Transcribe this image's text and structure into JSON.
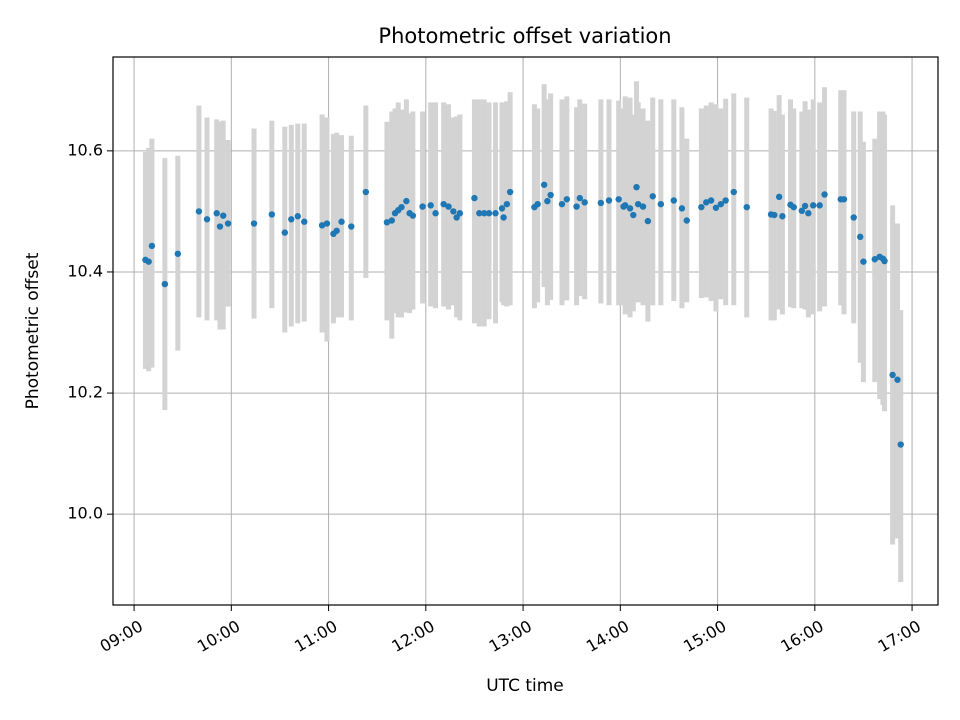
{
  "chart_data": {
    "type": "scatter",
    "title": "Photometric offset variation",
    "xlabel": "UTC time",
    "ylabel": "Photometric offset",
    "x_ticks": [
      "09:00",
      "10:00",
      "11:00",
      "12:00",
      "13:00",
      "14:00",
      "15:00",
      "16:00",
      "17:00"
    ],
    "y_ticks": [
      "10.0",
      "10.2",
      "10.4",
      "10.6"
    ],
    "xlim": [
      "08:47",
      "17:16"
    ],
    "ylim": [
      9.85,
      10.755
    ],
    "grid": true,
    "marker_color": "#1f77b4",
    "errorbar_color": "#d3d3d3",
    "series": [
      {
        "x": [
          "09:07",
          "09:09",
          "09:11",
          "09:19",
          "09:27",
          "09:40",
          "09:45",
          "09:51",
          "09:53",
          "09:55",
          "09:58",
          "10:14",
          "10:25",
          "10:33",
          "10:37",
          "10:41",
          "10:45",
          "10:56",
          "10:59",
          "11:03",
          "11:05",
          "11:08",
          "11:14",
          "11:23",
          "11:36",
          "11:39",
          "11:41",
          "11:43",
          "11:45",
          "11:48",
          "11:50",
          "11:52",
          "11:58",
          "12:03",
          "12:06",
          "12:11",
          "12:14",
          "12:17",
          "12:19",
          "12:21",
          "12:30",
          "12:33",
          "12:36",
          "12:39",
          "12:43",
          "12:47",
          "12:48",
          "12:50",
          "12:52",
          "13:07",
          "13:09",
          "13:13",
          "13:15",
          "13:17",
          "13:24",
          "13:27",
          "13:33",
          "13:35",
          "13:38",
          "13:48",
          "13:53",
          "13:59",
          "14:02",
          "14:03",
          "14:06",
          "14:08",
          "14:10",
          "14:11",
          "14:14",
          "14:17",
          "14:20",
          "14:25",
          "14:33",
          "14:38",
          "14:41",
          "14:50",
          "14:53",
          "14:56",
          "14:59",
          "15:02",
          "15:05",
          "15:10",
          "15:18",
          "15:33",
          "15:35",
          "15:38",
          "15:40",
          "15:45",
          "15:47",
          "15:52",
          "15:54",
          "15:56",
          "15:59",
          "16:03",
          "16:06",
          "16:16",
          "16:18",
          "16:24",
          "16:28",
          "16:30",
          "16:37",
          "16:40",
          "16:42",
          "16:43",
          "16:48",
          "16:51",
          "16:53"
        ],
        "y": [
          10.42,
          10.417,
          10.443,
          10.38,
          10.43,
          10.5,
          10.487,
          10.497,
          10.475,
          10.493,
          10.48,
          10.48,
          10.495,
          10.465,
          10.487,
          10.492,
          10.483,
          10.477,
          10.48,
          10.463,
          10.468,
          10.483,
          10.475,
          10.532,
          10.482,
          10.485,
          10.497,
          10.502,
          10.507,
          10.517,
          10.497,
          10.493,
          10.508,
          10.51,
          10.497,
          10.512,
          10.508,
          10.5,
          10.49,
          10.497,
          10.522,
          10.497,
          10.497,
          10.497,
          10.497,
          10.505,
          10.49,
          10.512,
          10.532,
          10.507,
          10.512,
          10.544,
          10.517,
          10.527,
          10.512,
          10.52,
          10.508,
          10.522,
          10.515,
          10.514,
          10.518,
          10.52,
          10.508,
          10.51,
          10.505,
          10.494,
          10.54,
          10.512,
          10.508,
          10.484,
          10.525,
          10.512,
          10.518,
          10.505,
          10.485,
          10.507,
          10.515,
          10.518,
          10.506,
          10.512,
          10.518,
          10.532,
          10.507,
          10.495,
          10.494,
          10.524,
          10.492,
          10.511,
          10.507,
          10.501,
          10.509,
          10.497,
          10.51,
          10.51,
          10.528,
          10.52,
          10.52,
          10.49,
          10.458,
          10.417,
          10.421,
          10.425,
          10.422,
          10.418,
          10.23,
          10.222,
          10.115
        ],
        "err_low": [
          10.24,
          10.236,
          10.242,
          10.172,
          10.27,
          10.325,
          10.32,
          10.32,
          10.305,
          10.305,
          10.343,
          10.323,
          10.34,
          10.3,
          10.31,
          10.315,
          10.318,
          10.3,
          10.285,
          10.315,
          10.325,
          10.325,
          10.32,
          10.39,
          10.32,
          10.29,
          10.332,
          10.325,
          10.325,
          10.333,
          10.332,
          10.338,
          10.348,
          10.343,
          10.34,
          10.343,
          10.338,
          10.345,
          10.325,
          10.32,
          10.315,
          10.31,
          10.31,
          10.322,
          10.315,
          10.35,
          10.345,
          10.343,
          10.345,
          10.34,
          10.35,
          10.375,
          10.345,
          10.354,
          10.345,
          10.353,
          10.345,
          10.36,
          10.355,
          10.348,
          10.345,
          10.345,
          10.345,
          10.33,
          10.325,
          10.335,
          10.36,
          10.35,
          10.345,
          10.318,
          10.345,
          10.345,
          10.352,
          10.34,
          10.35,
          10.357,
          10.358,
          10.352,
          10.335,
          10.355,
          10.345,
          10.345,
          10.325,
          10.32,
          10.32,
          10.338,
          10.33,
          10.342,
          10.34,
          10.34,
          10.338,
          10.325,
          10.33,
          10.335,
          10.343,
          10.345,
          10.33,
          10.315,
          10.25,
          10.218,
          10.218,
          10.19,
          10.18,
          10.17,
          9.95,
          9.96,
          9.888
        ],
        "err_high": [
          10.598,
          10.605,
          10.62,
          10.588,
          10.592,
          10.675,
          10.655,
          10.652,
          10.648,
          10.65,
          10.618,
          10.637,
          10.65,
          10.64,
          10.643,
          10.645,
          10.645,
          10.66,
          10.655,
          10.628,
          10.63,
          10.626,
          10.625,
          10.675,
          10.648,
          10.665,
          10.67,
          10.68,
          10.668,
          10.685,
          10.662,
          10.665,
          10.665,
          10.68,
          10.68,
          10.68,
          10.677,
          10.655,
          10.657,
          10.66,
          10.685,
          10.685,
          10.685,
          10.68,
          10.68,
          10.68,
          10.67,
          10.682,
          10.697,
          10.677,
          10.67,
          10.71,
          10.685,
          10.695,
          10.685,
          10.69,
          10.672,
          10.685,
          10.678,
          10.685,
          10.685,
          10.683,
          10.67,
          10.69,
          10.688,
          10.66,
          10.715,
          10.68,
          10.67,
          10.65,
          10.688,
          10.685,
          10.685,
          10.672,
          10.62,
          10.67,
          10.675,
          10.68,
          10.677,
          10.67,
          10.686,
          10.695,
          10.688,
          10.67,
          10.666,
          10.692,
          10.66,
          10.685,
          10.67,
          10.665,
          10.682,
          10.668,
          10.685,
          10.68,
          10.705,
          10.7,
          10.7,
          10.665,
          10.665,
          10.615,
          10.62,
          10.665,
          10.665,
          10.66,
          10.51,
          10.48,
          10.337
        ]
      }
    ]
  }
}
